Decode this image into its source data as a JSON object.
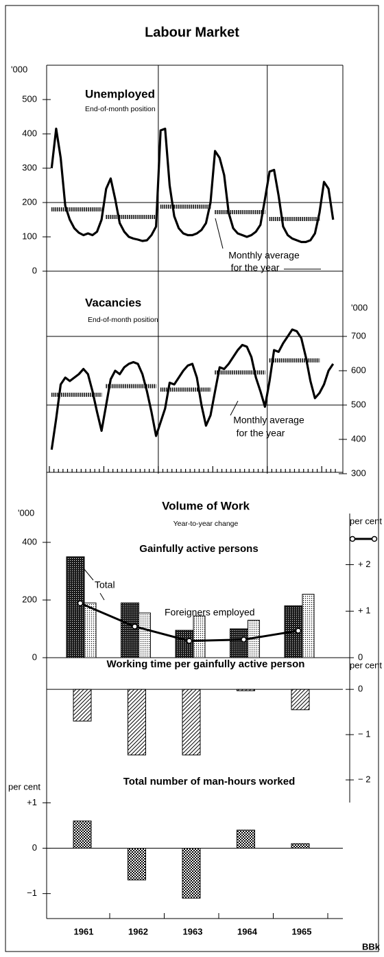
{
  "page": {
    "title": "Labour Market",
    "credit": "BBk"
  },
  "chart_data": [
    {
      "type": "line",
      "title": "Unemployed",
      "subtitle": "End-of-month position",
      "ylabel": "'000",
      "ylim": [
        0,
        600
      ],
      "yticks": [
        0,
        100,
        200,
        300,
        400,
        500
      ],
      "grid_at": [
        0,
        200
      ],
      "color": "#000",
      "values": [
        300,
        415,
        330,
        190,
        150,
        125,
        112,
        105,
        110,
        105,
        115,
        150,
        240,
        270,
        210,
        140,
        115,
        100,
        95,
        92,
        88,
        90,
        105,
        130,
        410,
        415,
        250,
        160,
        125,
        110,
        105,
        105,
        110,
        120,
        140,
        200,
        350,
        330,
        280,
        170,
        125,
        110,
        105,
        100,
        105,
        115,
        135,
        210,
        290,
        295,
        220,
        130,
        105,
        95,
        90,
        85,
        85,
        90,
        110,
        170,
        260,
        240,
        150
      ],
      "annual_average": [
        180,
        158,
        188,
        172,
        152
      ],
      "annotation": [
        "Monthly average",
        "for the year"
      ]
    },
    {
      "type": "line",
      "title": "Vacancies",
      "subtitle": "End-of-month position",
      "ylabel": "'000",
      "ylim": [
        300,
        800
      ],
      "yticks": [
        300,
        400,
        500,
        600,
        700
      ],
      "grid_at": [
        500,
        700
      ],
      "color": "#000",
      "values": [
        370,
        460,
        560,
        580,
        570,
        580,
        590,
        605,
        590,
        540,
        480,
        425,
        500,
        575,
        600,
        590,
        610,
        620,
        625,
        620,
        590,
        540,
        480,
        410,
        450,
        490,
        565,
        560,
        580,
        600,
        615,
        620,
        580,
        500,
        440,
        470,
        540,
        610,
        605,
        620,
        640,
        660,
        675,
        670,
        640,
        580,
        540,
        495,
        570,
        660,
        655,
        680,
        700,
        720,
        715,
        695,
        640,
        570,
        520,
        535,
        560,
        600,
        620
      ],
      "annual_average": [
        530,
        555,
        545,
        595,
        630
      ],
      "annotation": [
        "Monthly average",
        "for the year"
      ]
    },
    {
      "type": "bar",
      "title": "Volume of Work",
      "subtitle": "Year-to-year change",
      "heading": "Gainfully active persons",
      "ylabel": "'000",
      "ylim": [
        0,
        500
      ],
      "yticks": [
        0,
        200,
        400
      ],
      "grid_at": [
        0
      ],
      "y2label": "per cent",
      "y2lim": [
        0,
        3.1
      ],
      "y2ticks": [
        0,
        {
          "value": 1,
          "label": "+ 1"
        },
        {
          "value": 2,
          "label": "+ 2"
        }
      ],
      "series": [
        {
          "name": "Total",
          "pattern": "dark",
          "color": "#222",
          "values": [
            350,
            190,
            95,
            100,
            180
          ]
        },
        {
          "name": "Foreigners employed",
          "pattern": "light",
          "color": "#ddd",
          "values": [
            190,
            155,
            145,
            130,
            220
          ]
        },
        {
          "type": "line",
          "axis": "y2",
          "color": "#000",
          "values": [
            1.17,
            0.67,
            0.36,
            0.39,
            0.58
          ]
        }
      ]
    },
    {
      "type": "bar",
      "title": "Working time per gainfully active person",
      "ylabel": "per cent",
      "ylim": [
        -2.5,
        0.7
      ],
      "yticks": [
        {
          "value": -2,
          "label": "− 2"
        },
        {
          "value": -1,
          "label": "− 1"
        },
        0
      ],
      "grid_at": [
        0
      ],
      "pattern": "hatch",
      "color": "#555",
      "values": [
        -0.7,
        -1.45,
        -1.45,
        -0.03,
        -0.45
      ]
    },
    {
      "type": "bar",
      "title": "Total number of man-hours worked",
      "ylabel": "per cent",
      "ylim": [
        -1.55,
        1.4
      ],
      "yticks": [
        {
          "value": -1,
          "label": "−1"
        },
        0,
        {
          "value": 1,
          "label": "+1"
        }
      ],
      "grid_at": [
        0
      ],
      "pattern": "check",
      "color": "#666",
      "values": [
        0.6,
        -0.7,
        -1.1,
        0.4,
        0.1
      ],
      "categories": [
        "1961",
        "1962",
        "1963",
        "1964",
        "1965"
      ]
    }
  ]
}
